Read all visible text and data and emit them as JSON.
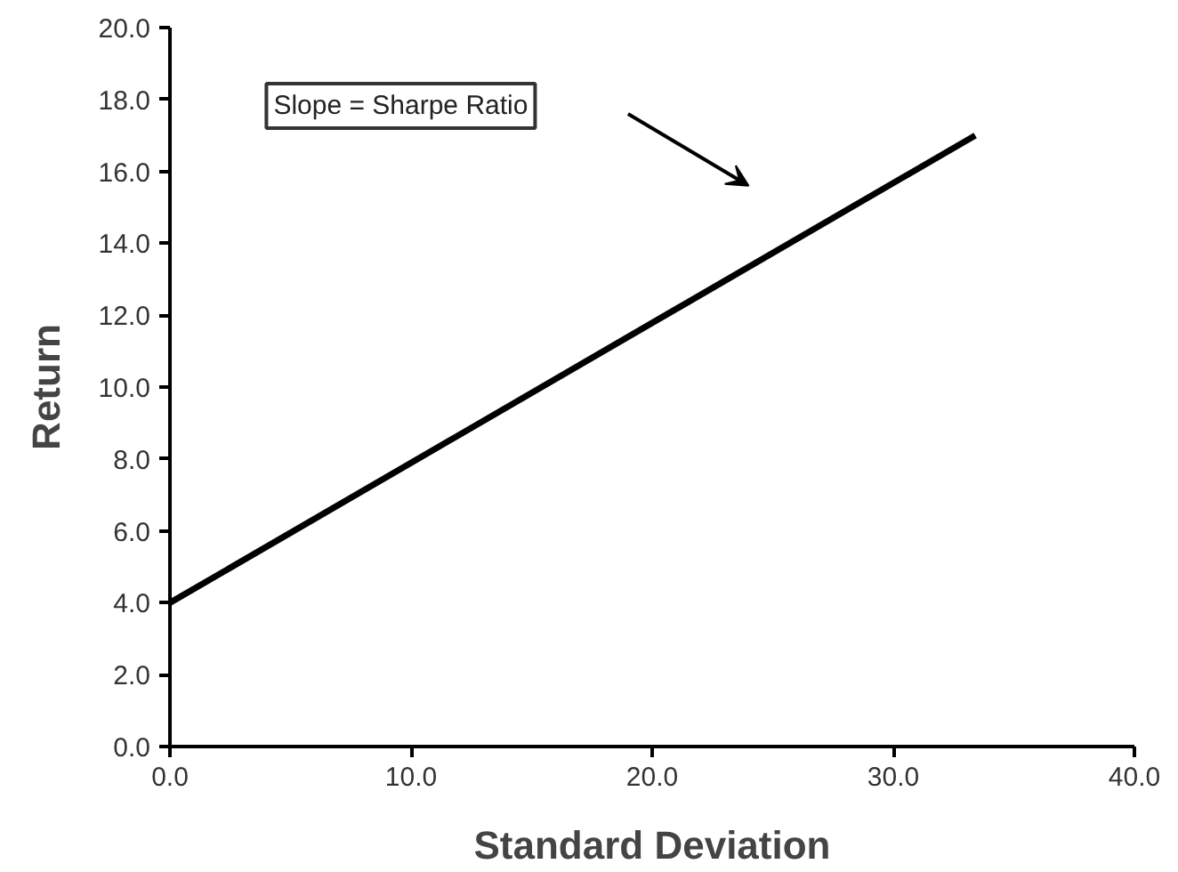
{
  "chart_data": {
    "type": "line",
    "xlabel": "Standard Deviation",
    "ylabel": "Return",
    "x": [
      0,
      33.4
    ],
    "values": [
      4.0,
      17.0
    ],
    "color": "#000000",
    "xlim": [
      0,
      40
    ],
    "ylim": [
      0,
      20
    ],
    "xticks": [
      {
        "value": 0,
        "label": "0.0"
      },
      {
        "value": 10,
        "label": "10.0"
      },
      {
        "value": 20,
        "label": "20.0"
      },
      {
        "value": 30,
        "label": "30.0"
      },
      {
        "value": 40,
        "label": "40.0"
      }
    ],
    "yticks": [
      {
        "value": 0,
        "label": "0.0"
      },
      {
        "value": 2,
        "label": "2.0"
      },
      {
        "value": 4,
        "label": "4.0"
      },
      {
        "value": 6,
        "label": "6.0"
      },
      {
        "value": 8,
        "label": "8.0"
      },
      {
        "value": 10,
        "label": "10.0"
      },
      {
        "value": 12,
        "label": "12.0"
      },
      {
        "value": 14,
        "label": "14.0"
      },
      {
        "value": 16,
        "label": "16.0"
      },
      {
        "value": 18,
        "label": "18.0"
      },
      {
        "value": 20,
        "label": "20.0"
      }
    ],
    "annotations": [
      "Slope = Sharpe Ratio"
    ],
    "grid": false,
    "marker": "none",
    "line_style": "solid"
  }
}
